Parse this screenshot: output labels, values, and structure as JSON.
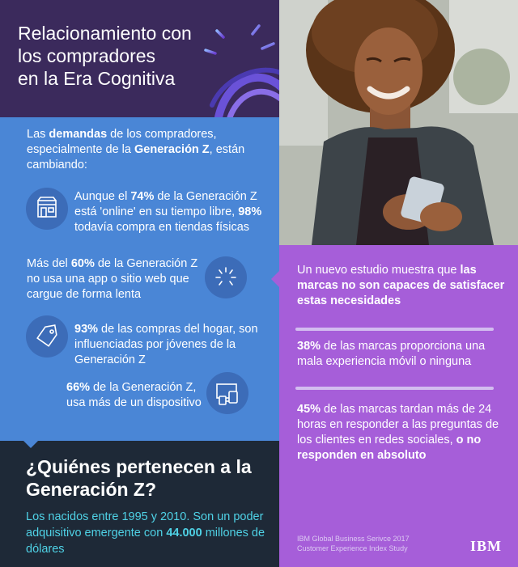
{
  "header": {
    "title_lines": [
      "Relacionamiento con",
      "los compradores",
      "en la Era Cognitiva"
    ]
  },
  "blue": {
    "intro": {
      "t1": "Las ",
      "b1": "demandas",
      "t2": " de los compradores, especialmente de la ",
      "b2": "Generación Z",
      "t3": ", están cambiando:"
    },
    "stat1": {
      "t1": "Aunque el ",
      "b1": "74%",
      "t2": " de la Generación Z está 'online' en su tiempo libre, ",
      "b2": "98%",
      "t3": " todavía compra en tiendas físicas",
      "icon": "storefront-icon"
    },
    "stat2": {
      "t1": "Más del ",
      "b1": "60%",
      "t2": " de la Generación Z no usa una app o sitio web que cargue de forma lenta",
      "icon": "loading-spinner-icon"
    },
    "stat3": {
      "b1": "93%",
      "t1": " de las compras del hogar, son influenciadas por jóvenes de la Generación Z",
      "icon": "price-tag-icon"
    },
    "stat4": {
      "b1": "66%",
      "t1": " de la Generación Z, usa más de un dispositivo",
      "icon": "devices-icon"
    }
  },
  "dark": {
    "title": "¿Quiénes pertenecen a la Generación Z?",
    "text_1": "Los nacidos entre 1995 y 2010. Son un poder adquisitivo emergente con ",
    "text_bold": "44.000",
    "text_2": " millones de dólares"
  },
  "purple": {
    "intro": {
      "t1": "Un nuevo estudio muestra que ",
      "b1": "las marcas no son capaces de satisfacer estas necesidades"
    },
    "stat1": {
      "b1": "38%",
      "t1": " de las marcas proporciona una mala experiencia móvil o ninguna"
    },
    "stat2": {
      "b1": "45%",
      "t1": " de las marcas tardan más de 24 horas en responder a las preguntas de los clientes en redes sociales, ",
      "b2": "o no responden en absoluto"
    },
    "source_line1": "IBM Global Business Serivce 2017",
    "source_line2": "Customer Experience Index Study",
    "logo": "IBM"
  },
  "colors": {
    "header_bg": "#3b2a5c",
    "blue_bg": "#4a86d6",
    "dark_bg": "#1e2937",
    "purple_bg": "#a65ed9",
    "cyan_text": "#4fd2e6"
  }
}
